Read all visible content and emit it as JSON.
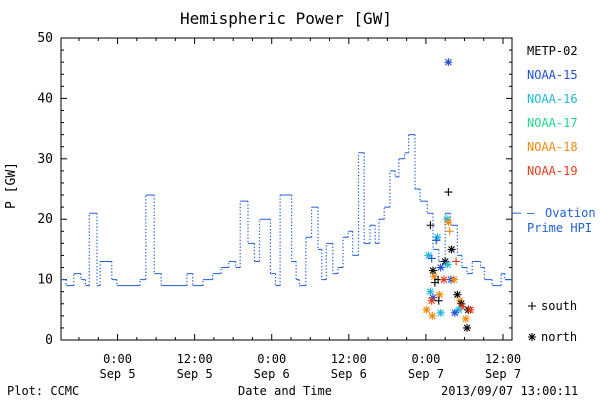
{
  "chart_data": {
    "type": "line",
    "title": "Hemispheric Power [GW]",
    "ylabel": "P [GW]",
    "xlabel": "Date and Time",
    "ylim": [
      0,
      50
    ],
    "yticks": [
      0,
      10,
      20,
      30,
      40,
      50
    ],
    "xlim_hours": [
      -8.8,
      61.4
    ],
    "x_tick_hours": [
      0,
      12,
      24,
      36,
      48,
      60
    ],
    "x_tick_labels": [
      {
        "time": "0:00",
        "date": "Sep 5"
      },
      {
        "time": "12:00",
        "date": "Sep 5"
      },
      {
        "time": "0:00",
        "date": "Sep 6"
      },
      {
        "time": "12:00",
        "date": "Sep 6"
      },
      {
        "time": "0:00",
        "date": "Sep 7"
      },
      {
        "time": "12:00",
        "date": "Sep 7"
      }
    ],
    "ovation_series": {
      "name": "Ovation Prime HPI",
      "name_line1": "Ovation",
      "name_line2": "Prime HPI",
      "legend_marker": "—",
      "current_value": 21,
      "color": "#1f5fd8",
      "steps": [
        [
          -8.8,
          10
        ],
        [
          -8.0,
          9
        ],
        [
          -6.8,
          11
        ],
        [
          -5.7,
          10
        ],
        [
          -5.0,
          9
        ],
        [
          -4.4,
          21
        ],
        [
          -3.2,
          9
        ],
        [
          -2.7,
          13
        ],
        [
          -0.9,
          10
        ],
        [
          -0.1,
          9
        ],
        [
          3.5,
          10
        ],
        [
          4.4,
          24
        ],
        [
          5.7,
          11
        ],
        [
          6.8,
          9
        ],
        [
          10.8,
          11
        ],
        [
          11.7,
          9
        ],
        [
          13.3,
          10
        ],
        [
          14.8,
          11
        ],
        [
          16.1,
          12
        ],
        [
          17.3,
          13
        ],
        [
          18.4,
          12
        ],
        [
          19.1,
          23
        ],
        [
          20.3,
          16
        ],
        [
          21.3,
          13
        ],
        [
          22.1,
          20
        ],
        [
          23.8,
          11
        ],
        [
          24.6,
          9
        ],
        [
          25.3,
          24
        ],
        [
          27.1,
          13
        ],
        [
          27.8,
          10
        ],
        [
          28.3,
          9
        ],
        [
          29.3,
          17
        ],
        [
          30.2,
          22
        ],
        [
          31.2,
          15
        ],
        [
          31.8,
          10
        ],
        [
          32.5,
          16
        ],
        [
          33.5,
          11
        ],
        [
          34.3,
          12
        ],
        [
          35.1,
          17
        ],
        [
          35.9,
          18
        ],
        [
          36.6,
          14
        ],
        [
          37.5,
          31
        ],
        [
          38.4,
          16
        ],
        [
          39.3,
          19
        ],
        [
          40.1,
          16
        ],
        [
          40.7,
          20
        ],
        [
          41.5,
          22
        ],
        [
          42.4,
          28
        ],
        [
          43.2,
          27
        ],
        [
          43.8,
          30
        ],
        [
          44.7,
          31
        ],
        [
          45.3,
          34
        ],
        [
          46.3,
          25
        ],
        [
          47.1,
          23
        ],
        [
          48.2,
          21
        ],
        [
          49.1,
          15
        ],
        [
          50.0,
          13
        ],
        [
          51.0,
          21
        ],
        [
          51.8,
          19
        ],
        [
          52.9,
          14
        ],
        [
          53.6,
          12
        ],
        [
          54.4,
          11
        ],
        [
          55.2,
          13
        ],
        [
          56.5,
          12
        ],
        [
          57.1,
          10
        ],
        [
          58.3,
          9
        ],
        [
          59.7,
          11
        ],
        [
          60.3,
          10
        ],
        [
          61.4,
          10
        ]
      ]
    },
    "satellites": [
      {
        "name": "METP-02",
        "color": "#000000"
      },
      {
        "name": "NOAA-15",
        "color": "#1f4fd8"
      },
      {
        "name": "NOAA-16",
        "color": "#20b8d8"
      },
      {
        "name": "NOAA-17",
        "color": "#20d88a"
      },
      {
        "name": "NOAA-18",
        "color": "#f08a10"
      },
      {
        "name": "NOAA-19",
        "color": "#e0401a"
      }
    ],
    "marker_legend": [
      {
        "symbol": "+",
        "label": "south"
      },
      {
        "symbol": "*",
        "label": "north"
      }
    ],
    "points": [
      {
        "sat": "NOAA-15",
        "marker": "*",
        "t": 51.5,
        "p": 46
      },
      {
        "sat": "METP-02",
        "marker": "+",
        "t": 51.5,
        "p": 24.5
      },
      {
        "sat": "NOAA-16",
        "marker": "*",
        "t": 51.3,
        "p": 20
      },
      {
        "sat": "NOAA-18",
        "marker": "*",
        "t": 51.5,
        "p": 19.5
      },
      {
        "sat": "METP-02",
        "marker": "+",
        "t": 48.7,
        "p": 19
      },
      {
        "sat": "NOAA-18",
        "marker": "+",
        "t": 51.7,
        "p": 18
      },
      {
        "sat": "NOAA-16",
        "marker": "*",
        "t": 49.8,
        "p": 17
      },
      {
        "sat": "NOAA-15",
        "marker": "+",
        "t": 49.6,
        "p": 16.5
      },
      {
        "sat": "NOAA-16",
        "marker": "*",
        "t": 48.4,
        "p": 14
      },
      {
        "sat": "METP-02",
        "marker": "*",
        "t": 52.0,
        "p": 15
      },
      {
        "sat": "NOAA-15",
        "marker": "+",
        "t": 48.9,
        "p": 13.5
      },
      {
        "sat": "METP-02",
        "marker": "*",
        "t": 51.0,
        "p": 13
      },
      {
        "sat": "NOAA-19",
        "marker": "+",
        "t": 52.7,
        "p": 13
      },
      {
        "sat": "NOAA-15",
        "marker": "*",
        "t": 50.3,
        "p": 12
      },
      {
        "sat": "METP-02",
        "marker": "*",
        "t": 49.1,
        "p": 11.5
      },
      {
        "sat": "NOAA-16",
        "marker": "*",
        "t": 51.4,
        "p": 12.5
      },
      {
        "sat": "NOAA-18",
        "marker": "*",
        "t": 49.3,
        "p": 10.5
      },
      {
        "sat": "METP-02",
        "marker": "+",
        "t": 49.9,
        "p": 10
      },
      {
        "sat": "NOAA-19",
        "marker": "*",
        "t": 50.8,
        "p": 10
      },
      {
        "sat": "NOAA-15",
        "marker": "*",
        "t": 51.9,
        "p": 10
      },
      {
        "sat": "NOAA-18",
        "marker": "*",
        "t": 52.4,
        "p": 10
      },
      {
        "sat": "METP-02",
        "marker": "+",
        "t": 49.4,
        "p": 9.5
      },
      {
        "sat": "NOAA-16",
        "marker": "*",
        "t": 48.7,
        "p": 8
      },
      {
        "sat": "NOAA-18",
        "marker": "*",
        "t": 50.1,
        "p": 7.5
      },
      {
        "sat": "METP-02",
        "marker": "*",
        "t": 52.9,
        "p": 7.5
      },
      {
        "sat": "NOAA-15",
        "marker": "*",
        "t": 49.1,
        "p": 7
      },
      {
        "sat": "NOAA-19",
        "marker": "*",
        "t": 48.9,
        "p": 6.5
      },
      {
        "sat": "METP-02",
        "marker": "+",
        "t": 50.0,
        "p": 6.5
      },
      {
        "sat": "NOAA-18",
        "marker": "*",
        "t": 53.3,
        "p": 6.5
      },
      {
        "sat": "METP-02",
        "marker": "*",
        "t": 53.5,
        "p": 6
      },
      {
        "sat": "NOAA-19",
        "marker": "*",
        "t": 53.6,
        "p": 5.5
      },
      {
        "sat": "NOAA-18",
        "marker": "*",
        "t": 48.1,
        "p": 5
      },
      {
        "sat": "NOAA-16",
        "marker": "*",
        "t": 53.1,
        "p": 5
      },
      {
        "sat": "METP-02",
        "marker": "*",
        "t": 54.6,
        "p": 5
      },
      {
        "sat": "NOAA-19",
        "marker": "*",
        "t": 54.9,
        "p": 5
      },
      {
        "sat": "NOAA-16",
        "marker": "*",
        "t": 50.3,
        "p": 4.5
      },
      {
        "sat": "NOAA-15",
        "marker": "*",
        "t": 52.5,
        "p": 4.5
      },
      {
        "sat": "NOAA-18",
        "marker": "*",
        "t": 49.0,
        "p": 4
      },
      {
        "sat": "NOAA-18",
        "marker": "*",
        "t": 54.2,
        "p": 3.5
      },
      {
        "sat": "METP-02",
        "marker": "*",
        "t": 54.4,
        "p": 2
      }
    ]
  },
  "footer": {
    "plot_source": "Plot: CCMC",
    "xlabel": "Date and Time",
    "timestamp": "2013/09/07 13:00:11"
  }
}
